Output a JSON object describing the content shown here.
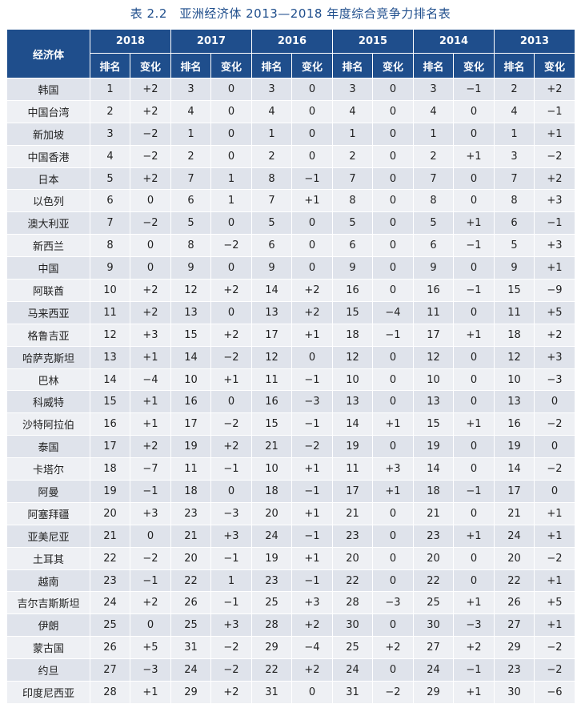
{
  "caption": "表 2.2　亚洲经济体 2013—2018 年度综合竞争力排名表",
  "header": {
    "corner": "经济体",
    "years": [
      "2018",
      "2017",
      "2016",
      "2015",
      "2014",
      "2013"
    ],
    "rank_label": "排名",
    "change_label": "变化"
  },
  "rows": [
    {
      "name": "韩国",
      "cells": [
        "1",
        "+2",
        "3",
        "0",
        "3",
        "0",
        "3",
        "0",
        "3",
        "−1",
        "2",
        "+2"
      ]
    },
    {
      "name": "中国台湾",
      "cells": [
        "2",
        "+2",
        "4",
        "0",
        "4",
        "0",
        "4",
        "0",
        "4",
        "0",
        "4",
        "−1"
      ]
    },
    {
      "name": "新加坡",
      "cells": [
        "3",
        "−2",
        "1",
        "0",
        "1",
        "0",
        "1",
        "0",
        "1",
        "0",
        "1",
        "+1"
      ]
    },
    {
      "name": "中国香港",
      "cells": [
        "4",
        "−2",
        "2",
        "0",
        "2",
        "0",
        "2",
        "0",
        "2",
        "+1",
        "3",
        "−2"
      ]
    },
    {
      "name": "日本",
      "cells": [
        "5",
        "+2",
        "7",
        "1",
        "8",
        "−1",
        "7",
        "0",
        "7",
        "0",
        "7",
        "+2"
      ]
    },
    {
      "name": "以色列",
      "cells": [
        "6",
        "0",
        "6",
        "1",
        "7",
        "+1",
        "8",
        "0",
        "8",
        "0",
        "8",
        "+3"
      ]
    },
    {
      "name": "澳大利亚",
      "cells": [
        "7",
        "−2",
        "5",
        "0",
        "5",
        "0",
        "5",
        "0",
        "5",
        "+1",
        "6",
        "−1"
      ]
    },
    {
      "name": "新西兰",
      "cells": [
        "8",
        "0",
        "8",
        "−2",
        "6",
        "0",
        "6",
        "0",
        "6",
        "−1",
        "5",
        "+3"
      ]
    },
    {
      "name": "中国",
      "cells": [
        "9",
        "0",
        "9",
        "0",
        "9",
        "0",
        "9",
        "0",
        "9",
        "0",
        "9",
        "+1"
      ]
    },
    {
      "name": "阿联酋",
      "cells": [
        "10",
        "+2",
        "12",
        "+2",
        "14",
        "+2",
        "16",
        "0",
        "16",
        "−1",
        "15",
        "−9"
      ]
    },
    {
      "name": "马来西亚",
      "cells": [
        "11",
        "+2",
        "13",
        "0",
        "13",
        "+2",
        "15",
        "−4",
        "11",
        "0",
        "11",
        "+5"
      ]
    },
    {
      "name": "格鲁吉亚",
      "cells": [
        "12",
        "+3",
        "15",
        "+2",
        "17",
        "+1",
        "18",
        "−1",
        "17",
        "+1",
        "18",
        "+2"
      ]
    },
    {
      "name": "哈萨克斯坦",
      "cells": [
        "13",
        "+1",
        "14",
        "−2",
        "12",
        "0",
        "12",
        "0",
        "12",
        "0",
        "12",
        "+3"
      ]
    },
    {
      "name": "巴林",
      "cells": [
        "14",
        "−4",
        "10",
        "+1",
        "11",
        "−1",
        "10",
        "0",
        "10",
        "0",
        "10",
        "−3"
      ]
    },
    {
      "name": "科威特",
      "cells": [
        "15",
        "+1",
        "16",
        "0",
        "16",
        "−3",
        "13",
        "0",
        "13",
        "0",
        "13",
        "0"
      ]
    },
    {
      "name": "沙特阿拉伯",
      "cells": [
        "16",
        "+1",
        "17",
        "−2",
        "15",
        "−1",
        "14",
        "+1",
        "15",
        "+1",
        "16",
        "−2"
      ]
    },
    {
      "name": "泰国",
      "cells": [
        "17",
        "+2",
        "19",
        "+2",
        "21",
        "−2",
        "19",
        "0",
        "19",
        "0",
        "19",
        "0"
      ]
    },
    {
      "name": "卡塔尔",
      "cells": [
        "18",
        "−7",
        "11",
        "−1",
        "10",
        "+1",
        "11",
        "+3",
        "14",
        "0",
        "14",
        "−2"
      ]
    },
    {
      "name": "阿曼",
      "cells": [
        "19",
        "−1",
        "18",
        "0",
        "18",
        "−1",
        "17",
        "+1",
        "18",
        "−1",
        "17",
        "0"
      ]
    },
    {
      "name": "阿塞拜疆",
      "cells": [
        "20",
        "+3",
        "23",
        "−3",
        "20",
        "+1",
        "21",
        "0",
        "21",
        "0",
        "21",
        "+1"
      ]
    },
    {
      "name": "亚美尼亚",
      "cells": [
        "21",
        "0",
        "21",
        "+3",
        "24",
        "−1",
        "23",
        "0",
        "23",
        "+1",
        "24",
        "+1"
      ]
    },
    {
      "name": "土耳其",
      "cells": [
        "22",
        "−2",
        "20",
        "−1",
        "19",
        "+1",
        "20",
        "0",
        "20",
        "0",
        "20",
        "−2"
      ]
    },
    {
      "name": "越南",
      "cells": [
        "23",
        "−1",
        "22",
        "1",
        "23",
        "−1",
        "22",
        "0",
        "22",
        "0",
        "22",
        "+1"
      ]
    },
    {
      "name": "吉尔吉斯斯坦",
      "cells": [
        "24",
        "+2",
        "26",
        "−1",
        "25",
        "+3",
        "28",
        "−3",
        "25",
        "+1",
        "26",
        "+5"
      ]
    },
    {
      "name": "伊朗",
      "cells": [
        "25",
        "0",
        "25",
        "+3",
        "28",
        "+2",
        "30",
        "0",
        "30",
        "−3",
        "27",
        "+1"
      ]
    },
    {
      "name": "蒙古国",
      "cells": [
        "26",
        "+5",
        "31",
        "−2",
        "29",
        "−4",
        "25",
        "+2",
        "27",
        "+2",
        "29",
        "−2"
      ]
    },
    {
      "name": "约旦",
      "cells": [
        "27",
        "−3",
        "24",
        "−2",
        "22",
        "+2",
        "24",
        "0",
        "24",
        "−1",
        "23",
        "−2"
      ]
    },
    {
      "name": "印度尼西亚",
      "cells": [
        "28",
        "+1",
        "29",
        "+2",
        "31",
        "0",
        "31",
        "−2",
        "29",
        "+1",
        "30",
        "−6"
      ]
    }
  ]
}
